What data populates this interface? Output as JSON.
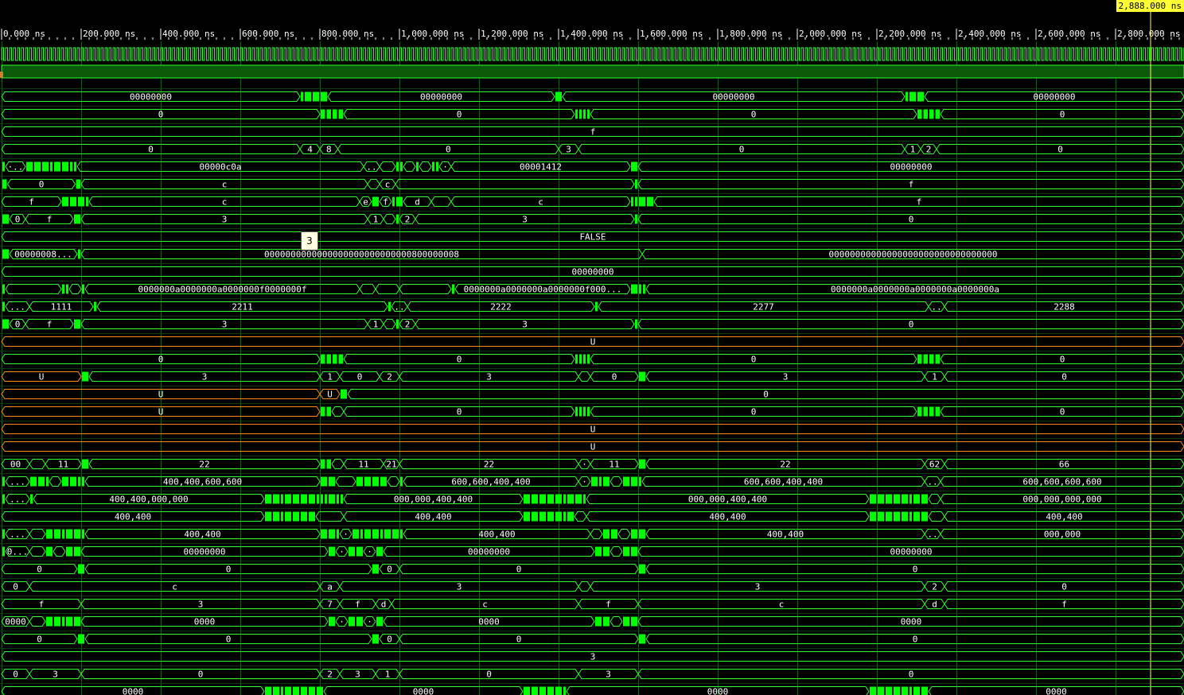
{
  "cursor": {
    "label": "2,888.000 ns",
    "time_ns": 2888
  },
  "tooltip": {
    "text": "3",
    "row": 10
  },
  "timeline": {
    "end_ns": 2888,
    "tick_labels": [
      "0.000 ns",
      "200.000 ns",
      "400.000 ns",
      "600.000 ns",
      "800.000 ns",
      "1,000.000 ns",
      "1,200.000 ns",
      "1,400.000 ns",
      "1,600.000 ns",
      "1,800.000 ns",
      "2,000.000 ns",
      "2,200.000 ns",
      "2,400.000 ns",
      "2,600.000 ns",
      "2,800.000 ns"
    ],
    "tick_values_ns": [
      0,
      200,
      400,
      600,
      800,
      1000,
      1200,
      1400,
      1600,
      1800,
      2000,
      2200,
      2400,
      2600,
      2800
    ]
  },
  "colors": {
    "signal": "#33ff33",
    "busy": "#00ff00",
    "undefined": "#ff8c1a",
    "grid": "#1a5c1a",
    "cursor": "#ffff33",
    "text": "#ffffff"
  },
  "rows": [
    {
      "kind": "clock",
      "period_ns": 10
    },
    {
      "kind": "highbar"
    },
    {
      "kind": "bus",
      "t": [
        0,
        750,
        760,
        780,
        800,
        820,
        1390,
        1410,
        2270,
        2280,
        2300,
        2320
      ],
      "v": [
        "00000000",
        "",
        "·",
        "",
        "",
        "00000000",
        "",
        "00000000",
        "",
        "·",
        "",
        "00000000"
      ]
    },
    {
      "kind": "bus",
      "t": [
        0,
        800,
        815,
        830,
        845,
        860,
        1440,
        1450,
        1460,
        1470,
        1480,
        2300,
        2315,
        2330,
        2345,
        2360
      ],
      "v": [
        "0",
        "0",
        "",
        "",
        "",
        "0",
        "",
        "",
        "",
        "",
        "0",
        "",
        "0",
        "",
        "",
        "0"
      ]
    },
    {
      "kind": "bus",
      "t": [
        0
      ],
      "v": [
        "f"
      ]
    },
    {
      "kind": "bus",
      "t": [
        0,
        750,
        800,
        845,
        1400,
        1450,
        2270,
        2310,
        2350
      ],
      "v": [
        "0",
        "4",
        "8",
        "0",
        "3",
        "0",
        "1",
        "2",
        "0"
      ]
    },
    {
      "kind": "bus",
      "t": [
        0,
        10,
        60,
        80,
        100,
        120,
        130,
        150,
        170,
        180,
        190,
        910,
        950,
        990,
        1000,
        1010,
        1040,
        1050,
        1080,
        1090,
        1100,
        1130,
        1580,
        1600
      ],
      "v": [
        "",
        "·..",
        "·",
        "·",
        "",
        "·",
        "",
        "",
        "",
        "",
        "00000c0a",
        "..",
        "",
        "",
        "·",
        "",
        "",
        "",
        "·",
        "",
        "·",
        "00001412",
        "",
        "00000000"
      ]
    },
    {
      "kind": "bus",
      "t": [
        0,
        15,
        185,
        200,
        920,
        950,
        990,
        1590,
        1600
      ],
      "v": [
        "",
        "0",
        "",
        "c",
        "",
        "c",
        "",
        "c",
        "f"
      ]
    },
    {
      "kind": "bus",
      "t": [
        0,
        150,
        170,
        190,
        210,
        220,
        900,
        930,
        950,
        980,
        990,
        1010,
        1080,
        1130,
        1580,
        1590,
        1600,
        1620,
        1640
      ],
      "v": [
        "f",
        "",
        "c",
        "",
        "",
        "c",
        "e",
        "",
        "f",
        "",
        "f",
        "d",
        "",
        "c",
        "f",
        "",
        "",
        "",
        "f"
      ]
    },
    {
      "kind": "bus",
      "t": [
        0,
        20,
        60,
        180,
        200,
        920,
        960,
        990,
        1000,
        1040,
        1590,
        1600
      ],
      "v": [
        "",
        "0",
        "f",
        "",
        "3",
        "1",
        "",
        "",
        "2",
        "3",
        "",
        "0"
      ]
    },
    {
      "kind": "bus",
      "t": [
        0
      ],
      "v": [
        "FALSE"
      ]
    },
    {
      "kind": "bus",
      "t": [
        0,
        20,
        190,
        200,
        1610
      ],
      "v": [
        "",
        "00000008...",
        "",
        "0000000000000000000000000000800000008",
        "00000000000000000000000000000000"
      ]
    },
    {
      "kind": "bus",
      "t": [
        0
      ],
      "v": [
        "00000000"
      ]
    },
    {
      "kind": "bus",
      "t": [
        0,
        10,
        150,
        160,
        170,
        200,
        210,
        900,
        940,
        1000,
        1130,
        1140,
        1580,
        1600,
        1610,
        1620
      ],
      "v": [
        "",
        "",
        "",
        "",
        "",
        "",
        "0000000a0000000a0000000f0000000f",
        "",
        "",
        "",
        "",
        "0000000a0000000a0000000f000...",
        "",
        "",
        "",
        "0000000a0000000a0000000a0000000a"
      ]
    },
    {
      "kind": "bus",
      "t": [
        0,
        10,
        70,
        230,
        240,
        970,
        980,
        1020,
        1490,
        1500,
        2330,
        2370
      ],
      "v": [
        "",
        "...",
        "1111",
        "",
        "2211",
        "",
        "..",
        "2222",
        "",
        "2277",
        "..",
        "2288"
      ]
    },
    {
      "kind": "bus",
      "t": [
        0,
        20,
        60,
        180,
        200,
        920,
        960,
        990,
        1000,
        1040,
        1590,
        1600
      ],
      "v": [
        "",
        "0",
        "f",
        "",
        "3",
        "1",
        "",
        "",
        "2",
        "3",
        "",
        "0"
      ]
    },
    {
      "kind": "undef",
      "t": [
        0
      ],
      "v": [
        "U"
      ]
    },
    {
      "kind": "bus",
      "t": [
        0,
        800,
        815,
        830,
        845,
        860,
        1440,
        1450,
        1460,
        1470,
        1480,
        2300,
        2315,
        2330,
        2345,
        2360
      ],
      "v": [
        "0",
        "0",
        "",
        "",
        "",
        "0",
        "",
        "",
        "",
        "",
        "0",
        "",
        "0",
        "",
        "",
        "0"
      ]
    },
    {
      "kind": "mixed",
      "t": [
        0,
        200,
        220,
        800,
        850,
        950,
        1000,
        1450,
        1480,
        1600,
        1620,
        2320,
        2370
      ],
      "v": [
        "U",
        "",
        "3",
        "1",
        "0",
        "2",
        "3",
        "",
        "0",
        "",
        "3",
        "1",
        "0"
      ],
      "u": [
        0
      ]
    },
    {
      "kind": "mixed",
      "t": [
        0,
        800,
        850,
        870
      ],
      "v": [
        "U",
        "U",
        "",
        "0"
      ],
      "u": [
        0,
        1
      ]
    },
    {
      "kind": "mixed",
      "t": [
        0,
        800,
        815,
        830,
        860,
        1440,
        1450,
        1460,
        1470,
        1480,
        2300,
        2315,
        2330,
        2345,
        2360
      ],
      "v": [
        "U",
        "U",
        "",
        "",
        "0",
        "",
        "",
        "",
        "",
        "0",
        "",
        "0",
        "",
        "",
        "0"
      ],
      "u": [
        0,
        1
      ]
    },
    {
      "kind": "undef",
      "t": [
        0
      ],
      "v": [
        "U"
      ]
    },
    {
      "kind": "undef",
      "t": [
        0
      ],
      "v": [
        "U"
      ]
    },
    {
      "kind": "bus",
      "t": [
        0,
        70,
        110,
        200,
        220,
        800,
        815,
        830,
        860,
        960,
        1000,
        1450,
        1480,
        1600,
        1620,
        2320,
        2370
      ],
      "v": [
        "00",
        "",
        "11",
        "",
        "22",
        "·",
        "",
        "",
        "11",
        "21",
        "22",
        "·",
        "11",
        "",
        "22",
        "62",
        "66"
      ]
    },
    {
      "kind": "bus",
      "t": [
        0,
        10,
        70,
        90,
        110,
        120,
        150,
        170,
        190,
        200,
        210,
        800,
        820,
        840,
        890,
        910,
        930,
        950,
        970,
        1000,
        1010,
        1450,
        1480,
        1500,
        1510,
        1530,
        1560,
        1580,
        1600,
        1610,
        2320,
        2360
      ],
      "v": [
        "",
        "...",
        "",
        "",
        "",
        "",
        "",
        "",
        "",
        "",
        "400,400,600,600",
        "·",
        "",
        "",
        "",
        "",
        "",
        "",
        "",
        "",
        "600,600,400,400",
        "·",
        "",
        "",
        "",
        "",
        "",
        "",
        "",
        "600,600,400,400",
        "..",
        "600,600,600,600"
      ]
    },
    {
      "kind": "bus",
      "t": [
        0,
        10,
        70,
        80,
        660,
        680,
        700,
        710,
        730,
        750,
        770,
        790,
        800,
        810,
        820,
        840,
        850,
        860,
        1310,
        1330,
        1350,
        1370,
        1390,
        1410,
        1420,
        1440,
        1460,
        1470,
        2180,
        2200,
        2220,
        2240,
        2260,
        2280,
        2290,
        2310,
        2330,
        2360
      ],
      "v": [
        "",
        "...",
        "",
        "400,400,000,000",
        "",
        "·",
        "",
        "",
        "·",
        "",
        "",
        "",
        "",
        "",
        "",
        "",
        "",
        "000,000,400,400",
        "",
        "",
        "",
        "",
        "",
        "",
        "",
        "",
        "",
        "000,000,400,400",
        "",
        "·",
        "",
        "",
        "·",
        "",
        "",
        "",
        "",
        "000,000,000,000"
      ]
    },
    {
      "kind": "bus",
      "t": [
        0,
        660,
        680,
        700,
        710,
        730,
        750,
        770,
        790,
        860,
        1310,
        1330,
        1350,
        1370,
        1390,
        1410,
        1420,
        1440,
        1470,
        2180,
        2200,
        2220,
        2240,
        2260,
        2280,
        2290,
        2310,
        2330,
        2370
      ],
      "v": [
        "400,400",
        "",
        "·",
        "",
        "",
        "·",
        "",
        "",
        "",
        "400,400",
        "",
        "",
        "",
        "",
        "",
        "",
        "",
        "",
        "400,400",
        "",
        "·",
        "",
        "",
        "·",
        "",
        "",
        "",
        "",
        "400,400"
      ]
    },
    {
      "kind": "bus",
      "t": [
        0,
        10,
        70,
        110,
        130,
        150,
        160,
        180,
        200,
        210,
        800,
        820,
        840,
        850,
        880,
        900,
        910,
        930,
        950,
        960,
        980,
        1000,
        1010,
        1480,
        1510,
        1530,
        1550,
        1580,
        1600,
        1620,
        2320,
        2360
      ],
      "v": [
        "",
        "...",
        "",
        "",
        "",
        "",
        "",
        "",
        "",
        "400,400",
        "",
        "",
        "",
        "·",
        "",
        "",
        "",
        "",
        "",
        "",
        "",
        "",
        "400,400",
        "",
        "",
        "",
        "",
        "",
        "",
        "400,400",
        "..",
        "000,000"
      ]
    },
    {
      "kind": "bus",
      "t": [
        0,
        10,
        70,
        110,
        130,
        160,
        180,
        200,
        820,
        840,
        870,
        890,
        910,
        940,
        960,
        1490,
        1510,
        1530,
        1560,
        1580,
        1600
      ],
      "v": [
        "",
        "0...",
        "",
        "",
        "",
        "",
        "",
        "00000000",
        "",
        "·",
        "",
        "",
        "·",
        "",
        "00000000",
        "",
        "",
        "",
        "",
        "",
        "00000000"
      ]
    },
    {
      "kind": "bus",
      "t": [
        0,
        190,
        210,
        930,
        950,
        1000,
        1600,
        1620
      ],
      "v": [
        "0",
        "",
        "0",
        "",
        "0",
        "0",
        "",
        "0"
      ]
    },
    {
      "kind": "bus",
      "t": [
        0,
        70,
        800,
        850,
        1450,
        1480,
        2320,
        2370
      ],
      "v": [
        "0",
        "c",
        "a",
        "3",
        "",
        "3",
        "2",
        "0"
      ]
    },
    {
      "kind": "bus",
      "t": [
        0,
        200,
        800,
        850,
        940,
        980,
        1450,
        1600,
        2320,
        2370
      ],
      "v": [
        "f",
        "3",
        "7",
        "f",
        "d",
        "c",
        "f",
        "c",
        "d",
        "f"
      ]
    },
    {
      "kind": "bus",
      "t": [
        0,
        70,
        110,
        130,
        150,
        160,
        180,
        200,
        820,
        840,
        870,
        890,
        910,
        940,
        960,
        1490,
        1510,
        1530,
        1560,
        1580,
        1600
      ],
      "v": [
        "0000",
        "",
        "",
        "",
        "",
        "",
        "",
        "0000",
        "",
        "·",
        "",
        "",
        "·",
        "",
        "0000",
        "",
        "",
        "",
        "",
        "",
        "0000"
      ]
    },
    {
      "kind": "bus",
      "t": [
        0,
        190,
        210,
        930,
        950,
        1000,
        1600,
        1620
      ],
      "v": [
        "0",
        "",
        "0",
        "",
        "0",
        "0",
        "",
        "0"
      ]
    },
    {
      "kind": "bus",
      "t": [
        0
      ],
      "v": [
        "3"
      ]
    },
    {
      "kind": "bus",
      "t": [
        0,
        70,
        200,
        800,
        850,
        940,
        1000,
        1450,
        1600
      ],
      "v": [
        "0",
        "3",
        "0",
        "2",
        "3",
        "1",
        "0",
        "3",
        "0"
      ]
    },
    {
      "kind": "bus",
      "t": [
        0,
        660,
        680,
        700,
        710,
        730,
        750,
        770,
        790,
        810,
        1310,
        1330,
        1350,
        1370,
        1390,
        1410,
        1420,
        2180,
        2200,
        2220,
        2240,
        2260,
        2280,
        2290,
        2310,
        2330
      ],
      "v": [
        "0000",
        "",
        "·",
        "",
        "",
        "·",
        "",
        "",
        "·",
        "0000",
        "",
        "",
        "",
        "",
        "",
        "",
        "0000",
        "",
        "·",
        "",
        "",
        "·",
        "",
        "",
        "",
        "0000"
      ]
    }
  ]
}
